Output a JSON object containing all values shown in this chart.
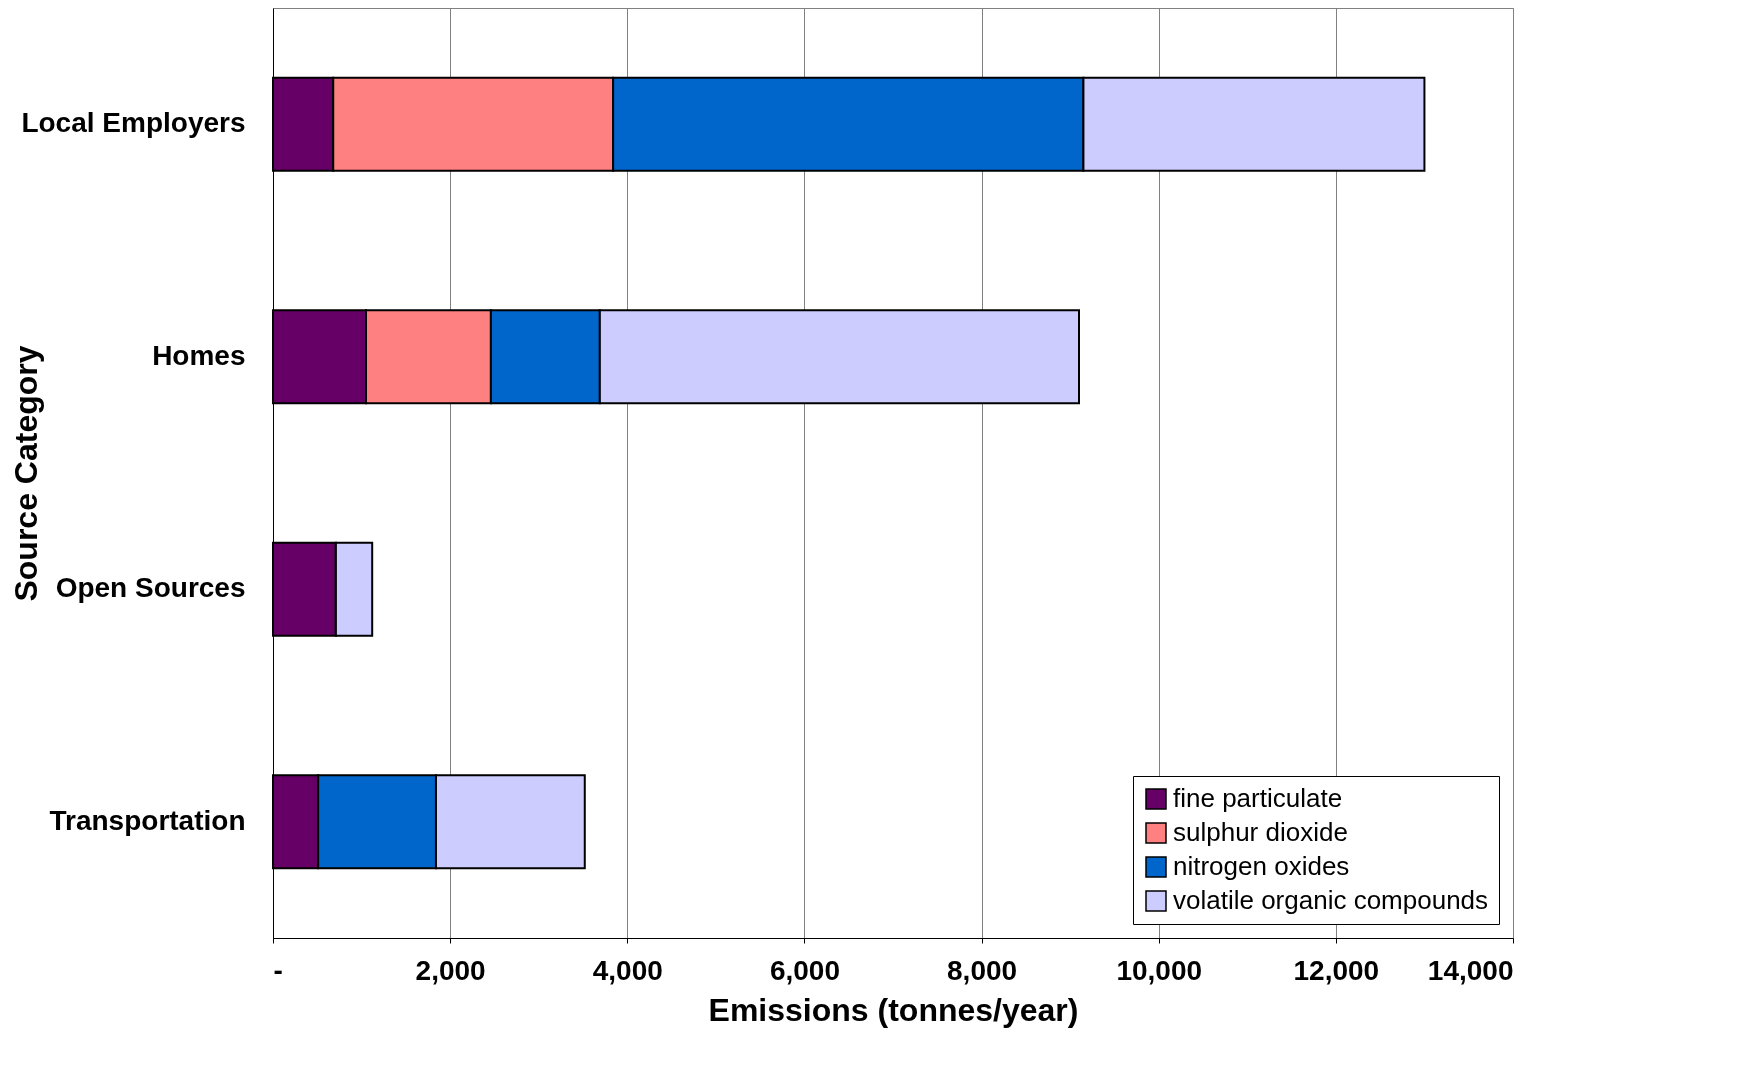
{
  "chart_data": {
    "type": "bar",
    "orientation": "horizontal",
    "stacked": true,
    "xlabel": "Emissions (tonnes/year)",
    "ylabel": "Source Category",
    "categories": [
      "Local Employers",
      "Homes",
      "Open Sources",
      "Transportation"
    ],
    "series": [
      {
        "name": "fine particulate",
        "color": "#660066",
        "values": [
          680,
          1050,
          710,
          510
        ]
      },
      {
        "name": "sulphur dioxide",
        "color": "#ff8080",
        "values": [
          3160,
          1410,
          0,
          null
        ]
      },
      {
        "name": "nitrogen oxides",
        "color": "#0066cc",
        "values": [
          5310,
          1230,
          0,
          1330
        ]
      },
      {
        "name": "volatile organic compounds",
        "color": "#ccccff",
        "values": [
          3850,
          5410,
          410,
          1680
        ]
      }
    ],
    "xlim": [
      0,
      14000
    ],
    "xticks": [
      {
        "value": 0,
        "label": "-"
      },
      {
        "value": 2000,
        "label": "2,000"
      },
      {
        "value": 4000,
        "label": "4,000"
      },
      {
        "value": 6000,
        "label": "6,000"
      },
      {
        "value": 8000,
        "label": "8,000"
      },
      {
        "value": 10000,
        "label": "10,000"
      },
      {
        "value": 12000,
        "label": "12,000"
      },
      {
        "value": 14000,
        "label": "14,000"
      }
    ],
    "grid": "x",
    "legend": "bottom right"
  }
}
